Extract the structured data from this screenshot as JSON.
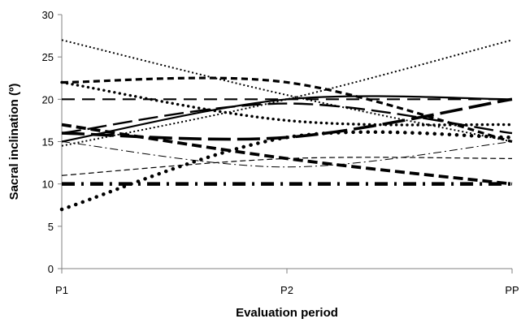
{
  "chart_data": {
    "type": "line",
    "title": "",
    "xlabel": "Evaluation period",
    "ylabel": "Sacral inclination (º)",
    "categories": [
      "P1",
      "P2",
      "PP"
    ],
    "ylim": [
      0,
      30
    ],
    "yticks": [
      0,
      5,
      10,
      15,
      20,
      25,
      30
    ],
    "grid": false,
    "legend": "none",
    "series": [
      {
        "values": [
          15,
          20,
          20
        ],
        "style": "solid-thick"
      },
      {
        "values": [
          27,
          20.5,
          15
        ],
        "style": "dotted-small"
      },
      {
        "values": [
          7,
          15.5,
          15.5
        ],
        "style": "dotted-large"
      },
      {
        "values": [
          22,
          22,
          15
        ],
        "style": "dashed-thick"
      },
      {
        "values": [
          20,
          20,
          20
        ],
        "style": "dashed-medium"
      },
      {
        "values": [
          17,
          13,
          10
        ],
        "style": "dashed-xthick"
      },
      {
        "values": [
          16,
          15.5,
          20
        ],
        "style": "longdash-thick"
      },
      {
        "values": [
          16,
          19.5,
          16
        ],
        "style": "longdash-medium"
      },
      {
        "values": [
          22,
          17.5,
          17
        ],
        "style": "roundDot"
      },
      {
        "values": [
          15,
          12,
          15
        ],
        "style": "dashdot-thin"
      },
      {
        "values": [
          11,
          13,
          13
        ],
        "style": "dashed-thin"
      },
      {
        "values": [
          10,
          10,
          10
        ],
        "style": "dashdot-thick"
      },
      {
        "values": [
          14.5,
          20,
          27
        ],
        "style": "dotted-fine"
      }
    ]
  }
}
